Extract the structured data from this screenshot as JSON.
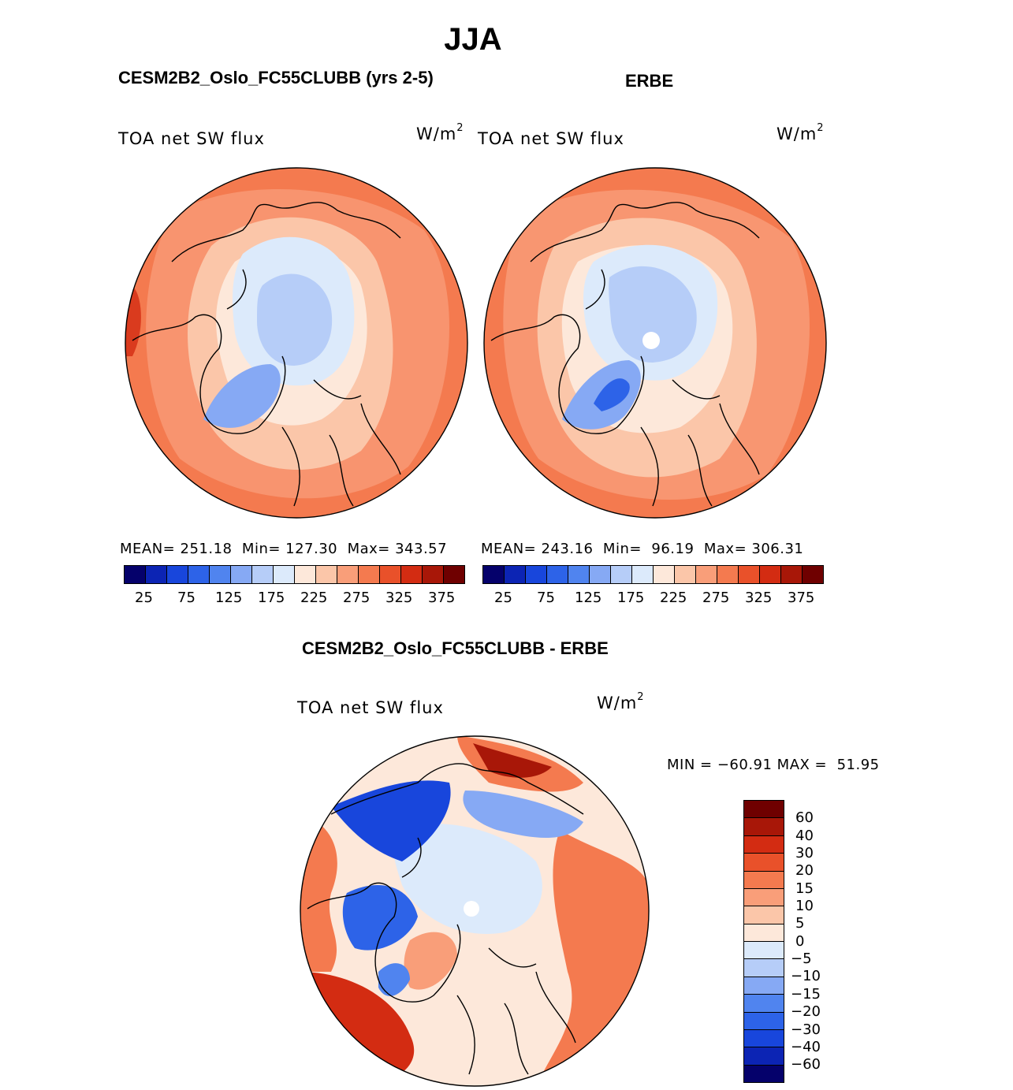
{
  "title": "JJA",
  "panels": {
    "model": {
      "heading": "CESM2B2_Oslo_FC55CLUBB (yrs 2-5)",
      "variable": "TOA net SW flux",
      "units": "W/m",
      "units_sup": "2",
      "stats": "MEAN= 251.18  Min= 127.30  Max= 343.57"
    },
    "obs": {
      "heading": "ERBE",
      "variable": "TOA net SW flux",
      "units": "W/m",
      "units_sup": "2",
      "stats": "MEAN= 243.16  Min=  96.19  Max= 306.31"
    },
    "diff": {
      "heading": "CESM2B2_Oslo_FC55CLUBB - ERBE",
      "variable": "TOA net SW flux",
      "units": "W/m",
      "units_sup": "2",
      "stats": "MIN = −60.91 MAX =  51.95"
    }
  },
  "colorbar_abs": {
    "colors": [
      "#05016b",
      "#0c24b4",
      "#1846dc",
      "#2d63e8",
      "#5084ef",
      "#86a9f4",
      "#b6cdf8",
      "#dceafb",
      "#fde8da",
      "#fbc6a9",
      "#f99e79",
      "#f47a4f",
      "#e9512a",
      "#d32c12",
      "#a81708",
      "#6f0000"
    ],
    "labels": [
      "25",
      "75",
      "125",
      "175",
      "225",
      "275",
      "325",
      "375"
    ]
  },
  "colorbar_diff": {
    "colors": [
      "#6f0000",
      "#a81708",
      "#d32c12",
      "#e9512a",
      "#f47a4f",
      "#f99e79",
      "#fbc6a9",
      "#fde8da",
      "#dceafb",
      "#b6cdf8",
      "#86a9f4",
      "#5084ef",
      "#2d63e8",
      "#1846dc",
      "#0c24b4",
      "#05016b"
    ],
    "labels": [
      "60",
      "40",
      "30",
      "20",
      "15",
      "10",
      "5",
      "0",
      "−5",
      "−10",
      "−15",
      "−20",
      "−30",
      "−40",
      "−60"
    ]
  },
  "map_colors": {
    "base_orange": "#f47a4f",
    "warm": "#f99e79",
    "light": "#fbc6a9",
    "pale": "#fde8da",
    "ice_light": "#dceafb",
    "ice": "#b6cdf8",
    "ice_mid": "#86a9f4",
    "ice_deep": "#5084ef",
    "dark_red": "#d32c12",
    "blue_strong": "#1846dc"
  }
}
